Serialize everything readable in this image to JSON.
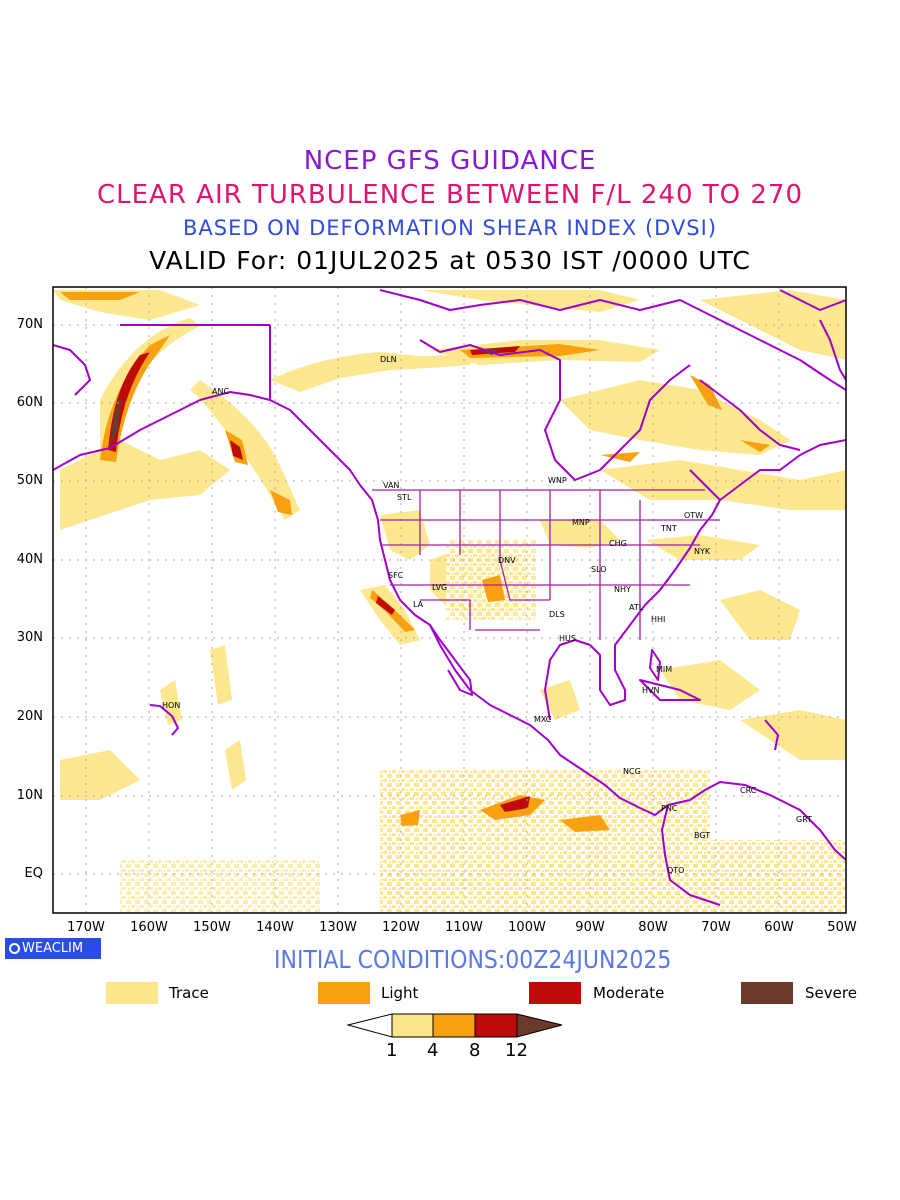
{
  "title": {
    "line1": "NCEP GFS GUIDANCE",
    "line2": "CLEAR AIR TURBULENCE BETWEEN F/L 240 TO 270",
    "line3": "BASED ON DEFORMATION SHEAR INDEX (DVSI)",
    "line4": "VALID For: 01JUL2025 at 0530 IST /0000 UTC"
  },
  "title_colors": {
    "line1": "#8a16d6",
    "line2": "#e0136f",
    "line3": "#2f4be0",
    "line4": "#000000"
  },
  "map": {
    "lat_labels": [
      "70N",
      "60N",
      "50N",
      "40N",
      "30N",
      "20N",
      "10N",
      "EQ"
    ],
    "lon_labels": [
      "170W",
      "160W",
      "150W",
      "140W",
      "130W",
      "120W",
      "110W",
      "100W",
      "90W",
      "80W",
      "70W",
      "60W",
      "50W"
    ],
    "cities": [
      "DLN",
      "ANC",
      "VAN",
      "STL",
      "WNP",
      "MNP",
      "TNT",
      "OTW",
      "CHG",
      "NYK",
      "DNV",
      "SLO",
      "SFC",
      "LVG",
      "NHY",
      "LA",
      "ATL",
      "DLS",
      "HHI",
      "HUS",
      "MIM",
      "HVN",
      "HON",
      "MXC",
      "NCG",
      "CRC",
      "GRT",
      "PNC",
      "BGT",
      "QTO"
    ],
    "border_color": "#a000c8",
    "state_line_color": "#a020a0"
  },
  "branding": {
    "name": "WEACLIM",
    "logo_icon": "circle-logo-icon"
  },
  "initial_conditions": "INITIAL CONDITIONS:00Z24JUN2025",
  "legend": [
    {
      "label": "Trace",
      "color": "#fde68a"
    },
    {
      "label": "Light",
      "color": "#f9a010"
    },
    {
      "label": "Moderate",
      "color": "#bf0a0a"
    },
    {
      "label": "Severe",
      "color": "#6b3a2c"
    }
  ],
  "colorbar": {
    "ticks": [
      "1",
      "4",
      "8",
      "12"
    ]
  }
}
